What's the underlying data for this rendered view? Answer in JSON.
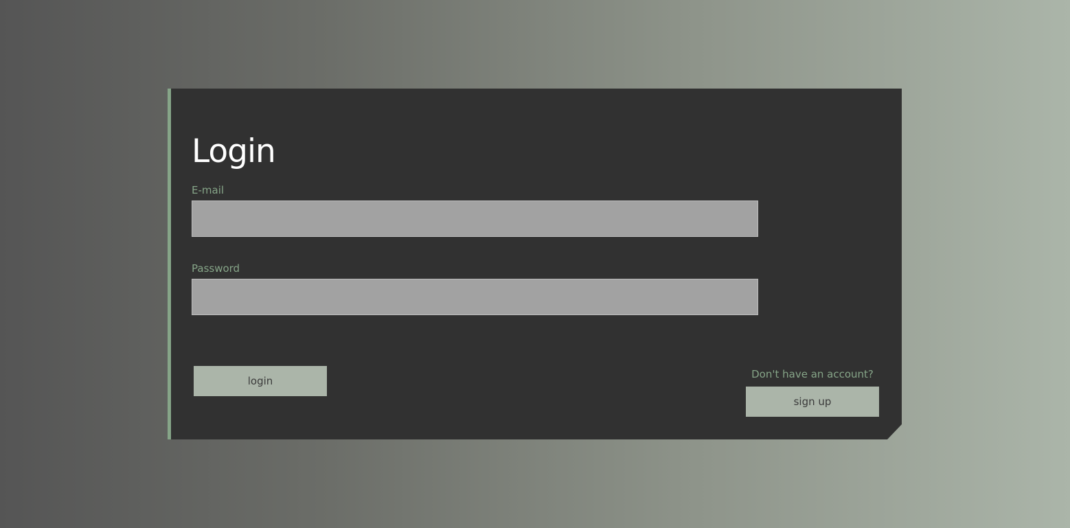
{
  "login_form": {
    "title": "Login",
    "email": {
      "label": "E-mail",
      "value": "",
      "placeholder": ""
    },
    "password": {
      "label": "Password",
      "value": "",
      "placeholder": ""
    },
    "login_button_label": "login",
    "signup_prompt": "Don't have an account?",
    "signup_button_label": "sign up"
  },
  "colors": {
    "card_background": "#313131",
    "accent_green": "#86a588",
    "button_background": "#abb5a9",
    "input_background": "#a2a2a2"
  }
}
